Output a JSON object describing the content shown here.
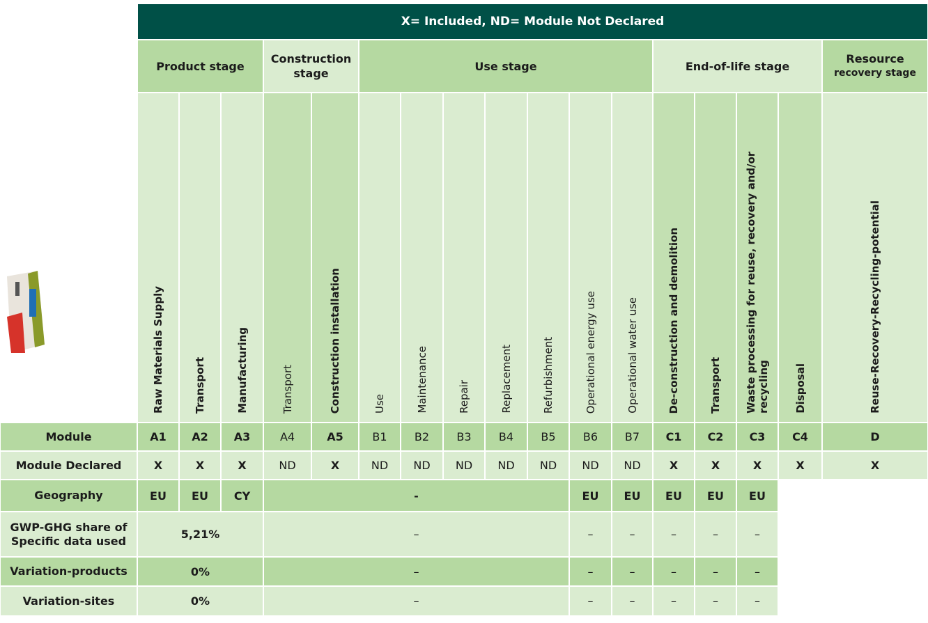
{
  "header": {
    "title": "X= Included, ND= Module Not Declared"
  },
  "stages": [
    {
      "lines": [
        "Product stage"
      ]
    },
    {
      "lines": [
        "Construction",
        "stage"
      ]
    },
    {
      "lines": [
        "Use stage"
      ]
    },
    {
      "lines": [
        "End-of-life stage"
      ]
    },
    {
      "lines": [
        "Resource",
        "recovery stage"
      ]
    }
  ],
  "columns": [
    "Raw Materials Supply",
    "Transport",
    "Manufacturing",
    "Transport",
    "Construction installation",
    "Use",
    "Maintenance",
    "Repair",
    "Replacement",
    "Refurbishment",
    "Operational energy use",
    "Operational water use",
    "De-construction and demolition",
    "Transport",
    "Waste processing for reuse, recovery and/or recycling",
    "Disposal",
    "Reuse-Recovery-Recycling-potential"
  ],
  "rows": [
    {
      "label": "Module",
      "cells": [
        "A1",
        "A2",
        "A3",
        "A4",
        "A5",
        "B1",
        "B2",
        "B3",
        "B4",
        "B5",
        "B6",
        "B7",
        "C1",
        "C2",
        "C3",
        "C4",
        "D"
      ]
    },
    {
      "label": "Module Declared",
      "cells": [
        "X",
        "X",
        "X",
        "ND",
        "X",
        "ND",
        "ND",
        "ND",
        "ND",
        "ND",
        "ND",
        "ND",
        "X",
        "X",
        "X",
        "X",
        "X"
      ]
    },
    {
      "label": "Geography",
      "cells": [
        "EU",
        "EU",
        "CY",
        "-",
        "EU",
        "EU",
        "EU",
        "EU",
        "EU"
      ]
    },
    {
      "label": "GWP-GHG share of Specific data used",
      "cells": [
        "5,21%",
        "–",
        "–",
        "–",
        "–",
        "–",
        "–"
      ]
    },
    {
      "label": "Variation-products",
      "cells": [
        "0%",
        "–",
        "–",
        "–",
        "–",
        "–",
        "–"
      ]
    },
    {
      "label": "Variation-sites",
      "cells": [
        "0%",
        "–",
        "–",
        "–",
        "–",
        "–",
        "–"
      ]
    }
  ]
}
